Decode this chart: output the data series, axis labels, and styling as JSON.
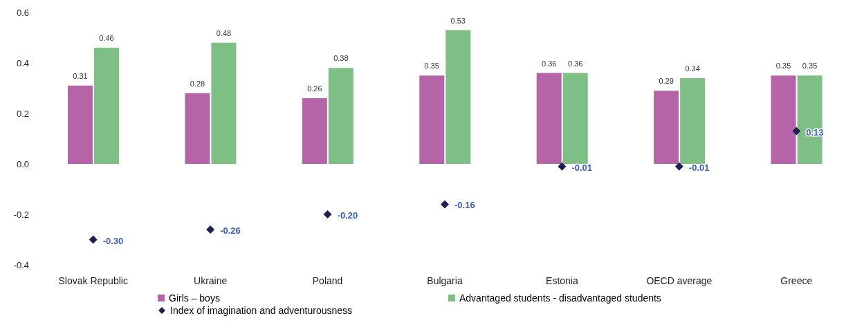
{
  "chart_data": {
    "type": "bar",
    "categories": [
      "Slovak Republic",
      "Ukraine",
      "Poland",
      "Bulgaria",
      "Estonia",
      "OECD average",
      "Greece"
    ],
    "ylim": [
      -0.4,
      0.6
    ],
    "yticks": [
      -0.4,
      -0.2,
      {
        "value": 0,
        "label": "0.0"
      },
      0.2,
      0.4,
      0.6
    ],
    "legend": "bottom",
    "series": [
      {
        "name": "Girls – boys",
        "color": "#b565a7",
        "values": [
          0.31,
          0.28,
          0.26,
          0.35,
          0.36,
          0.29,
          0.35
        ],
        "value_labels": [
          "0.31",
          "0.28",
          "0.26",
          "0.35",
          "0.36",
          "0.29",
          "0.35"
        ]
      },
      {
        "name": "Advantaged students - disadvantaged students",
        "color": "#7dbf85",
        "values": [
          0.46,
          0.48,
          0.38,
          0.53,
          0.36,
          0.34,
          0.35
        ],
        "value_labels": [
          "0.46",
          "0.48",
          "0.38",
          "0.53",
          "0.36",
          "0.34",
          "0.35"
        ]
      },
      {
        "type": "scatter",
        "name": "Index of imagination and adventurousness",
        "color": "#1f2051",
        "marker": "diamond",
        "values": [
          -0.3,
          -0.26,
          -0.2,
          -0.16,
          -0.01,
          -0.01,
          0.13
        ],
        "value_labels": [
          "-0.30",
          "-0.26",
          "-0.20",
          "-0.16",
          "-0.01",
          "-0.01",
          "0.13"
        ]
      }
    ]
  }
}
